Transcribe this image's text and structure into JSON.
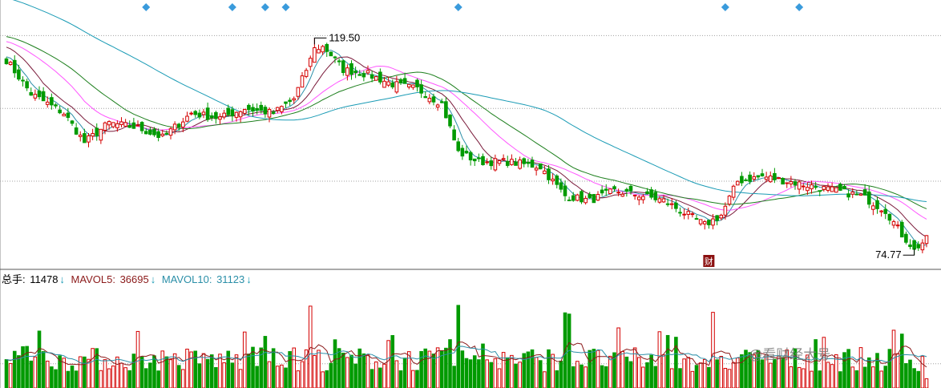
{
  "legend": {
    "total_label": "总手: ",
    "total_value": "11478",
    "ma5_label": "MAVOL5: ",
    "ma5_value": "36695",
    "ma10_label": "MAVOL10: ",
    "ma10_value": "31123",
    "arrow": "↓"
  },
  "annotations": {
    "high_label": "119.50",
    "low_label": "74.77",
    "event_marker": "财"
  },
  "watermark": "@看财经大号",
  "colors": {
    "up": "#d40000",
    "down": "#009a00",
    "ma5": "#2b8fa8",
    "ma10": "#7a1a3a",
    "ma20": "#ff55ff",
    "ma30": "#1d7f1d",
    "ma60": "#1a9bb5",
    "marker": "#3a9bdc",
    "grid": "#a0a0a0",
    "vol_ma5": "#8b1a1a",
    "vol_ma10": "#2b8fa8"
  },
  "chart_data": {
    "type": "candlestick",
    "price_range": [
      72,
      127
    ],
    "price_gridlines": [
      90,
      105,
      120
    ],
    "high": 119.5,
    "low": 74.77,
    "high_index": 75,
    "low_index": 221,
    "event_index": 171,
    "marker_indices": [
      34,
      55,
      63,
      68,
      110,
      175,
      193
    ],
    "volume_range": [
      0,
      125000
    ],
    "volume_gridline": 30000,
    "latest_volume": 11478,
    "latest_mavol5": 36695,
    "latest_mavol10": 31123,
    "key_closes": [
      [
        0,
        115
      ],
      [
        6,
        108
      ],
      [
        14,
        104
      ],
      [
        19,
        98
      ],
      [
        25,
        102
      ],
      [
        32,
        101
      ],
      [
        38,
        99
      ],
      [
        45,
        104
      ],
      [
        52,
        103
      ],
      [
        58,
        105
      ],
      [
        65,
        104
      ],
      [
        70,
        107
      ],
      [
        74,
        115
      ],
      [
        77,
        118
      ],
      [
        82,
        113
      ],
      [
        88,
        112
      ],
      [
        94,
        110
      ],
      [
        100,
        109
      ],
      [
        106,
        106
      ],
      [
        110,
        96
      ],
      [
        115,
        94
      ],
      [
        122,
        94
      ],
      [
        130,
        93
      ],
      [
        136,
        87
      ],
      [
        142,
        86
      ],
      [
        148,
        88
      ],
      [
        155,
        87
      ],
      [
        160,
        86
      ],
      [
        166,
        83
      ],
      [
        170,
        81
      ],
      [
        174,
        83
      ],
      [
        178,
        90
      ],
      [
        184,
        91
      ],
      [
        190,
        90
      ],
      [
        196,
        89
      ],
      [
        202,
        88
      ],
      [
        208,
        87
      ],
      [
        214,
        84
      ],
      [
        218,
        79
      ],
      [
        221,
        76
      ],
      [
        224,
        78
      ]
    ]
  }
}
